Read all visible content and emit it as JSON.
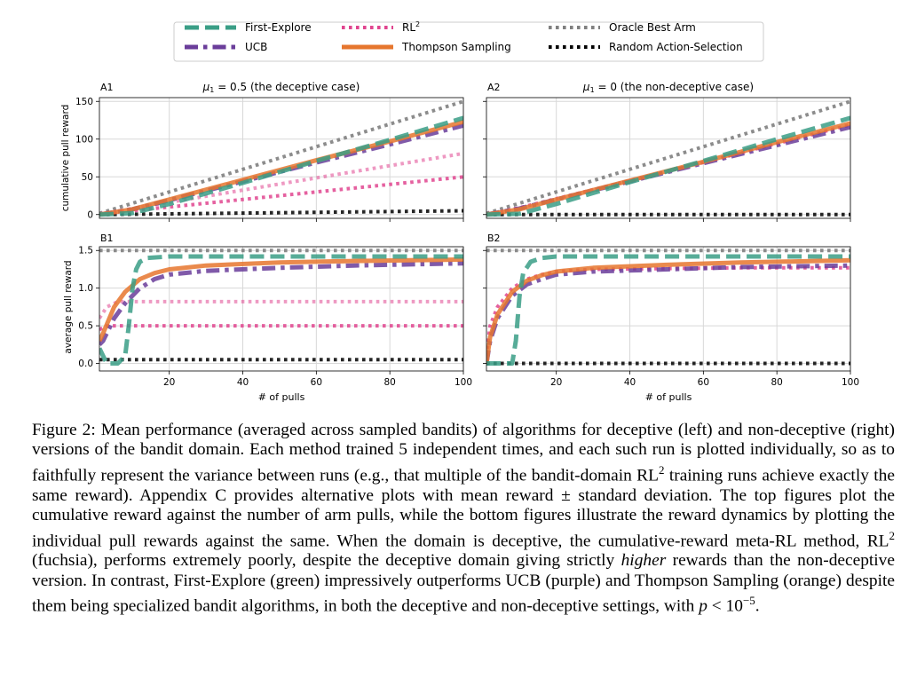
{
  "legend": [
    {
      "label": "First-Explore",
      "color": "#3a9e86",
      "style": "dashed",
      "width": 5
    },
    {
      "label": "UCB",
      "color": "#6a3d9a",
      "style": "dashdot",
      "width": 5
    },
    {
      "label": "RL",
      "sup": "2",
      "color": "#e0458f",
      "style": "dotted",
      "width": 4
    },
    {
      "label": "Thompson Sampling",
      "color": "#e6762e",
      "style": "solid",
      "width": 5
    },
    {
      "label": "Oracle Best Arm",
      "color": "#808080",
      "style": "dotted",
      "width": 4
    },
    {
      "label": "Random Action-Selection",
      "color": "#000000",
      "style": "dotted",
      "width": 4
    }
  ],
  "panels": {
    "A1": {
      "tag": "A1",
      "title_mu": "μ",
      "title_sub": "1",
      "title_rest": " = 0.5 (the deceptive case)"
    },
    "A2": {
      "tag": "A2",
      "title_mu": "μ",
      "title_sub": "1",
      "title_rest": " = 0 (the non-deceptive case)"
    },
    "B1": {
      "tag": "B1"
    },
    "B2": {
      "tag": "B2"
    }
  },
  "axes": {
    "ylabel_top": "cumulative pull reward",
    "ylabel_bottom": "average pull reward",
    "xlabel": "# of pulls",
    "x_ticks": [
      "20",
      "40",
      "60",
      "80",
      "100"
    ],
    "y_ticks_top": [
      "0",
      "50",
      "100",
      "150"
    ],
    "y_ticks_bottom": [
      "0.0",
      "0.5",
      "1.0",
      "1.5"
    ]
  },
  "chart_data": [
    {
      "panel": "A1",
      "type": "line",
      "title": "μ1 = 0.5 (the deceptive case)",
      "xlabel": "",
      "ylabel": "cumulative pull reward",
      "xlim": [
        1,
        100
      ],
      "ylim": [
        -5,
        155
      ],
      "grid": true,
      "series": [
        {
          "name": "Oracle Best Arm",
          "x": [
            1,
            100
          ],
          "y": [
            1.5,
            150
          ]
        },
        {
          "name": "First-Explore",
          "x": [
            1,
            10,
            20,
            40,
            60,
            80,
            100
          ],
          "y": [
            0,
            2,
            14,
            42,
            71,
            99,
            128
          ]
        },
        {
          "name": "UCB",
          "x": [
            1,
            10,
            20,
            40,
            60,
            80,
            100
          ],
          "y": [
            0,
            7,
            19,
            44,
            69,
            93,
            118
          ]
        },
        {
          "name": "Thompson Sampling",
          "x": [
            1,
            10,
            20,
            40,
            60,
            80,
            100
          ],
          "y": [
            0,
            7,
            20,
            46,
            72,
            97,
            123
          ]
        },
        {
          "name": "RL² (run a)",
          "x": [
            1,
            100
          ],
          "y": [
            0.8,
            81
          ]
        },
        {
          "name": "RL² (run b)",
          "x": [
            1,
            100
          ],
          "y": [
            0.5,
            50
          ]
        },
        {
          "name": "Random Action-Selection",
          "x": [
            1,
            100
          ],
          "y": [
            0,
            5
          ]
        }
      ]
    },
    {
      "panel": "A2",
      "type": "line",
      "title": "μ1 = 0 (the non-deceptive case)",
      "xlabel": "",
      "ylabel": "",
      "xlim": [
        1,
        100
      ],
      "ylim": [
        -5,
        155
      ],
      "grid": true,
      "series": [
        {
          "name": "Oracle Best Arm",
          "x": [
            1,
            100
          ],
          "y": [
            1.5,
            150
          ]
        },
        {
          "name": "First-Explore",
          "x": [
            1,
            10,
            20,
            40,
            60,
            80,
            100
          ],
          "y": [
            0,
            1,
            14,
            43,
            71,
            100,
            128
          ]
        },
        {
          "name": "UCB",
          "x": [
            1,
            10,
            20,
            40,
            60,
            80,
            100
          ],
          "y": [
            0,
            8,
            20,
            44,
            68,
            92,
            116
          ]
        },
        {
          "name": "Thompson Sampling",
          "x": [
            1,
            10,
            20,
            40,
            60,
            80,
            100
          ],
          "y": [
            0,
            7,
            20,
            45,
            70,
            96,
            121
          ]
        },
        {
          "name": "RL²",
          "x": [
            1,
            10,
            20,
            40,
            60,
            80,
            100
          ],
          "y": [
            0,
            9,
            21,
            45,
            69,
            94,
            119
          ]
        },
        {
          "name": "Random Action-Selection",
          "x": [
            1,
            100
          ],
          "y": [
            0,
            0
          ]
        }
      ]
    },
    {
      "panel": "B1",
      "type": "line",
      "title": "",
      "xlabel": "# of pulls",
      "ylabel": "average pull reward",
      "xlim": [
        1,
        100
      ],
      "ylim": [
        -0.1,
        1.55
      ],
      "grid": true,
      "series": [
        {
          "name": "Oracle Best Arm",
          "x": [
            1,
            100
          ],
          "y": [
            1.5,
            1.5
          ]
        },
        {
          "name": "First-Explore",
          "x": [
            1,
            3,
            6,
            8,
            9,
            10,
            11,
            12,
            14,
            20,
            100
          ],
          "y": [
            0.2,
            0.0,
            0.0,
            0.1,
            0.5,
            1.0,
            1.25,
            1.35,
            1.4,
            1.42,
            1.42
          ]
        },
        {
          "name": "UCB",
          "x": [
            1,
            2,
            5,
            8,
            12,
            16,
            20,
            30,
            50,
            70,
            100
          ],
          "y": [
            0.25,
            0.3,
            0.6,
            0.8,
            1.0,
            1.12,
            1.18,
            1.23,
            1.27,
            1.3,
            1.33
          ]
        },
        {
          "name": "Thompson Sampling",
          "x": [
            1,
            2,
            5,
            8,
            12,
            16,
            20,
            30,
            50,
            70,
            100
          ],
          "y": [
            0.3,
            0.4,
            0.75,
            0.95,
            1.12,
            1.2,
            1.25,
            1.3,
            1.34,
            1.36,
            1.38
          ]
        },
        {
          "name": "RL² (run a)",
          "x": [
            1,
            3,
            6,
            10,
            100
          ],
          "y": [
            0.6,
            0.75,
            0.82,
            0.82,
            0.82
          ]
        },
        {
          "name": "RL² (run b)",
          "x": [
            1,
            3,
            6,
            100
          ],
          "y": [
            0.45,
            0.5,
            0.5,
            0.5
          ]
        },
        {
          "name": "Random Action-Selection",
          "x": [
            1,
            100
          ],
          "y": [
            0.05,
            0.05
          ]
        }
      ]
    },
    {
      "panel": "B2",
      "type": "line",
      "title": "",
      "xlabel": "# of pulls",
      "ylabel": "",
      "xlim": [
        1,
        100
      ],
      "ylim": [
        -0.1,
        1.55
      ],
      "grid": true,
      "series": [
        {
          "name": "Oracle Best Arm",
          "x": [
            1,
            100
          ],
          "y": [
            1.5,
            1.5
          ]
        },
        {
          "name": "First-Explore",
          "x": [
            1,
            4,
            8,
            9,
            10,
            11,
            13,
            16,
            20,
            100
          ],
          "y": [
            0.0,
            0.0,
            0.0,
            0.3,
            0.9,
            1.2,
            1.35,
            1.4,
            1.42,
            1.42
          ]
        },
        {
          "name": "UCB",
          "x": [
            1,
            2,
            4,
            8,
            12,
            16,
            20,
            30,
            50,
            70,
            100
          ],
          "y": [
            0.0,
            0.3,
            0.6,
            0.9,
            1.05,
            1.12,
            1.18,
            1.22,
            1.25,
            1.28,
            1.3
          ]
        },
        {
          "name": "Thompson Sampling",
          "x": [
            1,
            2,
            4,
            8,
            12,
            16,
            20,
            30,
            50,
            70,
            100
          ],
          "y": [
            0.0,
            0.35,
            0.65,
            0.95,
            1.1,
            1.17,
            1.22,
            1.27,
            1.31,
            1.34,
            1.37
          ]
        },
        {
          "name": "RL²",
          "x": [
            1,
            2,
            4,
            8,
            12,
            16,
            20,
            30,
            50,
            70,
            100
          ],
          "y": [
            0.1,
            0.5,
            0.75,
            1.0,
            1.12,
            1.18,
            1.22,
            1.25,
            1.26,
            1.27,
            1.27
          ]
        },
        {
          "name": "Random Action-Selection",
          "x": [
            1,
            100
          ],
          "y": [
            0.0,
            0.0
          ]
        }
      ]
    }
  ],
  "caption": {
    "s1": "Figure 2: Mean performance (averaged across sampled bandits) of algorithms for deceptive (left) and non-deceptive (right) versions of the bandit domain. Each method trained 5 independent times, and each such run is plotted individually, so as to faithfully represent the variance between runs (e.g., that multiple of the bandit-domain RL",
    "s2": " training runs achieve exactly the same reward). Appendix C provides alternative plots with mean reward ± standard deviation. The top figures plot the cumulative reward against the number of arm pulls, while the bottom figures illustrate the reward dynamics by plotting the individual pull rewards against the same. When the domain is deceptive, the cumulative-reward meta-RL method, RL",
    "s3": " (fuchsia), performs extremely poorly, despite the deceptive domain giving strictly ",
    "em": "higher",
    "s4": " rewards than the non-deceptive version. In contrast, First-Explore (green) impressively outperforms UCB (purple) and Thompson Sampling (orange) despite them being specialized bandit algorithms, in both the deceptive and non-deceptive settings, with ",
    "p": "p",
    "lt": " < 10",
    "exp": "−5",
    "end": ".",
    "sup2": "2"
  }
}
